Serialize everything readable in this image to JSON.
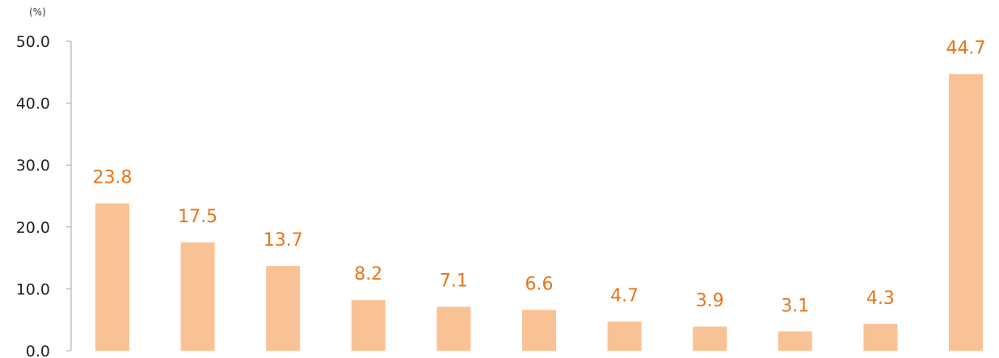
{
  "chart_data": {
    "type": "bar",
    "unit_label": "(%)",
    "categories": [
      "",
      "",
      "",
      "",
      "",
      "",
      "",
      "",
      "",
      "",
      ""
    ],
    "values": [
      23.8,
      17.5,
      13.7,
      8.2,
      7.1,
      6.6,
      4.7,
      3.9,
      3.1,
      4.3,
      44.7
    ],
    "value_labels": [
      "23.8",
      "17.5",
      "13.7",
      "8.2",
      "7.1",
      "6.6",
      "4.7",
      "3.9",
      "3.1",
      "4.3",
      "44.7"
    ],
    "ylim": [
      0,
      50
    ],
    "yticks": [
      "0.0",
      "10.0",
      "20.0",
      "30.0",
      "40.0",
      "50.0"
    ],
    "grid": false,
    "bar_color": "#f9c295",
    "label_color": "#e8751a",
    "axis_color": "#a6a6a6"
  }
}
